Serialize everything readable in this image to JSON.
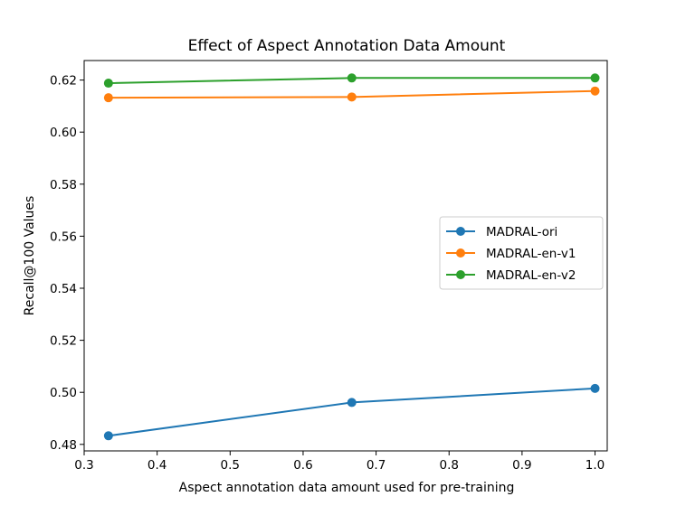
{
  "chart_data": {
    "type": "line",
    "title": "Effect of Aspect Annotation Data Amount",
    "xlabel": "Aspect annotation data amount used for pre-training",
    "ylabel": "Recall@100 Values",
    "xlim": [
      0.3,
      1.0167
    ],
    "ylim": [
      0.4775,
      0.6275
    ],
    "xticks": [
      0.3,
      0.4,
      0.5,
      0.6,
      0.7,
      0.8,
      0.9,
      1.0
    ],
    "xtick_labels": [
      "0.3",
      "0.4",
      "0.5",
      "0.6",
      "0.7",
      "0.8",
      "0.9",
      "1.0"
    ],
    "yticks": [
      0.48,
      0.5,
      0.52,
      0.54,
      0.56,
      0.58,
      0.6,
      0.62
    ],
    "ytick_labels": [
      "0.48",
      "0.50",
      "0.52",
      "0.54",
      "0.56",
      "0.58",
      "0.60",
      "0.62"
    ],
    "x": [
      0.3333,
      0.6667,
      1.0
    ],
    "legend_position": "center-right",
    "series": [
      {
        "name": "MADRAL-ori",
        "color": "#1f77b4",
        "values": [
          0.4833,
          0.4961,
          0.5015
        ]
      },
      {
        "name": "MADRAL-en-v1",
        "color": "#ff7f0e",
        "values": [
          0.6132,
          0.6135,
          0.6158
        ]
      },
      {
        "name": "MADRAL-en-v2",
        "color": "#2ca02c",
        "values": [
          0.6188,
          0.6208,
          0.6208
        ]
      }
    ]
  }
}
